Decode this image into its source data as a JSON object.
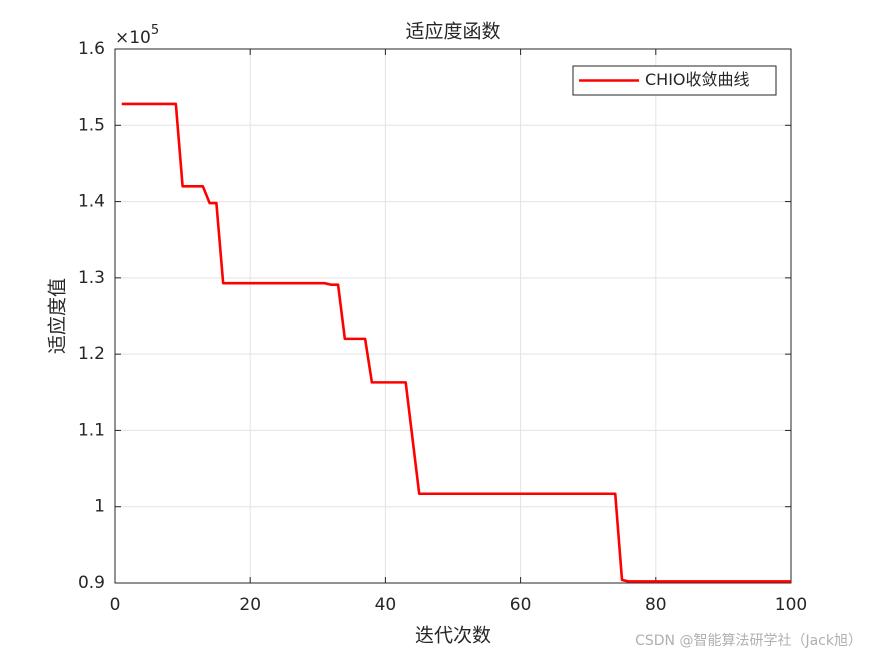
{
  "chart_data": {
    "type": "line",
    "title": "适应度函数",
    "x_label": "迭代次数",
    "y_label": "适应度值",
    "y_exponent": {
      "base": "×10",
      "power": "5"
    },
    "watermark": "CSDN @智能算法研学社（Jack旭）",
    "x": [
      1,
      2,
      3,
      4,
      5,
      6,
      7,
      8,
      9,
      10,
      11,
      12,
      13,
      14,
      15,
      16,
      17,
      18,
      19,
      20,
      21,
      22,
      23,
      24,
      25,
      26,
      27,
      28,
      29,
      30,
      31,
      32,
      33,
      34,
      35,
      36,
      37,
      38,
      39,
      40,
      41,
      42,
      43,
      44,
      45,
      46,
      47,
      48,
      49,
      50,
      51,
      52,
      53,
      54,
      55,
      56,
      57,
      58,
      59,
      60,
      61,
      62,
      63,
      64,
      65,
      66,
      67,
      68,
      69,
      70,
      71,
      72,
      73,
      74,
      75,
      76,
      77,
      78,
      79,
      80,
      81,
      82,
      83,
      84,
      85,
      86,
      87,
      88,
      89,
      90,
      91,
      92,
      93,
      94,
      95,
      96,
      97,
      98,
      99,
      100
    ],
    "series": [
      {
        "name": "CHIO收敛曲线",
        "color": "#ff0000",
        "values": [
          1.528,
          1.528,
          1.528,
          1.528,
          1.528,
          1.528,
          1.528,
          1.528,
          1.528,
          1.42,
          1.42,
          1.42,
          1.42,
          1.398,
          1.398,
          1.293,
          1.293,
          1.293,
          1.293,
          1.293,
          1.293,
          1.293,
          1.293,
          1.293,
          1.293,
          1.293,
          1.293,
          1.293,
          1.293,
          1.293,
          1.293,
          1.291,
          1.291,
          1.22,
          1.22,
          1.22,
          1.22,
          1.163,
          1.163,
          1.163,
          1.163,
          1.163,
          1.163,
          1.09,
          1.017,
          1.017,
          1.017,
          1.017,
          1.017,
          1.017,
          1.017,
          1.017,
          1.017,
          1.017,
          1.017,
          1.017,
          1.017,
          1.017,
          1.017,
          1.017,
          1.017,
          1.017,
          1.017,
          1.017,
          1.017,
          1.017,
          1.017,
          1.017,
          1.017,
          1.017,
          1.017,
          1.017,
          1.017,
          1.017,
          0.904,
          0.902,
          0.902,
          0.902,
          0.902,
          0.902,
          0.902,
          0.902,
          0.902,
          0.902,
          0.902,
          0.902,
          0.902,
          0.902,
          0.902,
          0.902,
          0.902,
          0.902,
          0.902,
          0.902,
          0.902,
          0.902,
          0.902,
          0.902,
          0.902,
          0.902
        ]
      }
    ],
    "xlim": [
      0,
      100
    ],
    "xticks": [
      0,
      20,
      40,
      60,
      80,
      100
    ],
    "ylim": [
      0.9,
      1.6
    ],
    "yticks": [
      0.9,
      1,
      1.1,
      1.2,
      1.3,
      1.4,
      1.5,
      1.6
    ],
    "grid": true,
    "legend": "upper right"
  }
}
